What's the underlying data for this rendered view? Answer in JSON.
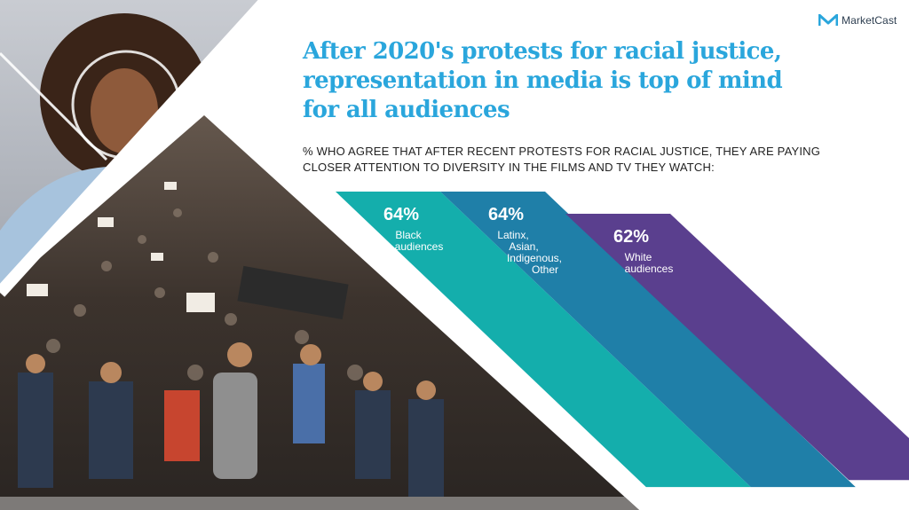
{
  "brand": {
    "name": "MarketCast",
    "logo_color": "#2aa6dc"
  },
  "title": "After 2020's protests for racial justice, representation in media is top of mind for all audiences",
  "subtitle": "% who agree that after recent protests for racial justice, they are paying closer attention to diversity in the films and TV they watch:",
  "chart_data": {
    "type": "bar",
    "unit": "%",
    "ylim": [
      0,
      100
    ],
    "categories": [
      "Black audiences",
      "Latinx, Asian, Indigenous, Other",
      "White audiences"
    ],
    "values": [
      64,
      64,
      62
    ],
    "data_labels": [
      "64%",
      "64%",
      "62%"
    ],
    "category_label_lines": [
      [
        "Black",
        "audiences"
      ],
      [
        "Latinx,",
        "Asian,",
        "Indigenous,",
        "Other"
      ],
      [
        "White",
        "audiences"
      ]
    ],
    "colors": [
      "#14aeac",
      "#1f7fa8",
      "#5a3f8e"
    ]
  }
}
